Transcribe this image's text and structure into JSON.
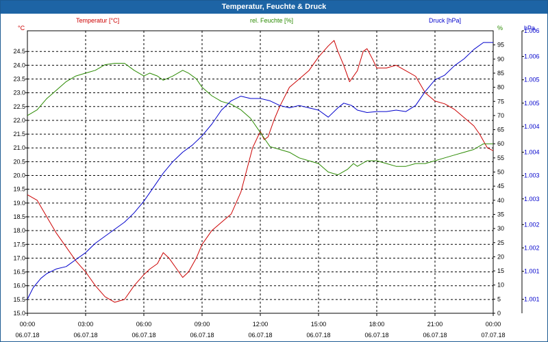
{
  "window": {
    "title": "Temperatur, Feuchte & Druck"
  },
  "colors": {
    "temperature": "#cc0000",
    "humidity": "#2a8a00",
    "pressure": "#0000cc",
    "grid": "#000000",
    "titlebar": "#1d64a5"
  },
  "chart_data": {
    "type": "line",
    "title": "Temperatur, Feuchte & Druck",
    "x_ticks": [
      {
        "time": "00:00",
        "date": "06.07.18",
        "hour": 0
      },
      {
        "time": "03:00",
        "date": "06.07.18",
        "hour": 3
      },
      {
        "time": "06:00",
        "date": "06.07.18",
        "hour": 6
      },
      {
        "time": "09:00",
        "date": "06.07.18",
        "hour": 9
      },
      {
        "time": "12:00",
        "date": "06.07.18",
        "hour": 12
      },
      {
        "time": "15:00",
        "date": "06.07.18",
        "hour": 15
      },
      {
        "time": "18:00",
        "date": "06.07.18",
        "hour": 18
      },
      {
        "time": "21:00",
        "date": "06.07.18",
        "hour": 21
      },
      {
        "time": "00:00",
        "date": "07.07.18",
        "hour": 24
      }
    ],
    "xlim": [
      0,
      24
    ],
    "axes": {
      "temperature": {
        "unit": "°C",
        "range": [
          15.0,
          25.25
        ],
        "ticks": [
          15.0,
          15.5,
          16.0,
          16.5,
          17.0,
          17.5,
          18.0,
          18.5,
          19.0,
          19.5,
          20.0,
          20.5,
          21.0,
          21.5,
          22.0,
          22.5,
          23.0,
          23.5,
          24.0,
          24.5
        ]
      },
      "humidity": {
        "unit": "%",
        "range": [
          0,
          100
        ],
        "ticks": [
          0,
          5,
          10,
          15,
          20,
          25,
          30,
          35,
          40,
          45,
          50,
          55,
          60,
          65,
          70,
          75,
          80,
          85,
          90,
          95
        ]
      },
      "pressure": {
        "unit": "hPa",
        "range": [
          1000.4,
          1006.45
        ],
        "ticks": [
          {
            "value": 1000.7,
            "label": "1.001"
          },
          {
            "value": 1001.3,
            "label": "1.001"
          },
          {
            "value": 1001.8,
            "label": "1.002"
          },
          {
            "value": 1002.3,
            "label": "1.002"
          },
          {
            "value": 1002.85,
            "label": "1.003"
          },
          {
            "value": 1003.35,
            "label": "1.003"
          },
          {
            "value": 1003.85,
            "label": "1.004"
          },
          {
            "value": 1004.4,
            "label": "1.004"
          },
          {
            "value": 1004.9,
            "label": "1.005"
          },
          {
            "value": 1005.4,
            "label": "1.005"
          },
          {
            "value": 1005.9,
            "label": "1.006"
          },
          {
            "value": 1006.45,
            "label": "1.006"
          }
        ]
      }
    },
    "series": [
      {
        "name": "Temperatur [°C]",
        "axis": "temperature",
        "key": "temperature",
        "points": [
          [
            0,
            19.3
          ],
          [
            0.5,
            19.1
          ],
          [
            1,
            18.5
          ],
          [
            1.5,
            17.9
          ],
          [
            2,
            17.4
          ],
          [
            2.5,
            16.9
          ],
          [
            3,
            16.5
          ],
          [
            3.5,
            16.0
          ],
          [
            4,
            15.6
          ],
          [
            4.5,
            15.4
          ],
          [
            5,
            15.5
          ],
          [
            5.5,
            16.0
          ],
          [
            6,
            16.4
          ],
          [
            6.3,
            16.6
          ],
          [
            6.7,
            16.8
          ],
          [
            7,
            17.2
          ],
          [
            7.3,
            17.0
          ],
          [
            7.7,
            16.6
          ],
          [
            8,
            16.3
          ],
          [
            8.3,
            16.5
          ],
          [
            8.7,
            17.0
          ],
          [
            9,
            17.5
          ],
          [
            9.5,
            18.0
          ],
          [
            10,
            18.3
          ],
          [
            10.5,
            18.6
          ],
          [
            11,
            19.4
          ],
          [
            11.3,
            20.2
          ],
          [
            11.6,
            21.0
          ],
          [
            12,
            21.6
          ],
          [
            12.2,
            21.3
          ],
          [
            12.4,
            21.4
          ],
          [
            12.7,
            22.0
          ],
          [
            13,
            22.5
          ],
          [
            13.5,
            23.2
          ],
          [
            14,
            23.5
          ],
          [
            14.5,
            23.8
          ],
          [
            15,
            24.3
          ],
          [
            15.5,
            24.7
          ],
          [
            15.8,
            24.9
          ],
          [
            16,
            24.5
          ],
          [
            16.3,
            24.0
          ],
          [
            16.6,
            23.4
          ],
          [
            17,
            23.8
          ],
          [
            17.3,
            24.5
          ],
          [
            17.5,
            24.6
          ],
          [
            17.8,
            24.2
          ],
          [
            18,
            23.9
          ],
          [
            18.5,
            23.9
          ],
          [
            19,
            24.0
          ],
          [
            19.5,
            23.8
          ],
          [
            20,
            23.6
          ],
          [
            20.5,
            23.0
          ],
          [
            21,
            22.7
          ],
          [
            21.5,
            22.6
          ],
          [
            22,
            22.4
          ],
          [
            22.5,
            22.1
          ],
          [
            23,
            21.8
          ],
          [
            23.3,
            21.5
          ],
          [
            23.7,
            21.0
          ],
          [
            24,
            20.9
          ]
        ]
      },
      {
        "name": "rel. Feuchte [%]",
        "axis": "humidity",
        "key": "humidity",
        "points": [
          [
            0,
            70
          ],
          [
            0.5,
            72
          ],
          [
            1,
            76
          ],
          [
            1.5,
            79
          ],
          [
            2,
            82
          ],
          [
            2.5,
            84
          ],
          [
            3,
            85
          ],
          [
            3.5,
            86
          ],
          [
            4,
            88
          ],
          [
            4.5,
            88.5
          ],
          [
            5,
            88.5
          ],
          [
            5.3,
            87
          ],
          [
            5.5,
            86
          ],
          [
            6,
            84
          ],
          [
            6.3,
            85
          ],
          [
            6.7,
            84
          ],
          [
            7,
            82.5
          ],
          [
            7.5,
            84
          ],
          [
            8,
            86
          ],
          [
            8.3,
            85
          ],
          [
            8.7,
            83
          ],
          [
            9,
            80
          ],
          [
            9.5,
            77
          ],
          [
            10,
            75
          ],
          [
            10.5,
            74
          ],
          [
            11,
            72
          ],
          [
            11.5,
            69
          ],
          [
            12,
            64
          ],
          [
            12.3,
            61
          ],
          [
            12.5,
            59
          ],
          [
            13,
            58
          ],
          [
            13.5,
            57
          ],
          [
            14,
            55
          ],
          [
            14.5,
            54
          ],
          [
            15,
            53
          ],
          [
            15.5,
            50
          ],
          [
            16,
            49
          ],
          [
            16.5,
            51
          ],
          [
            16.8,
            53
          ],
          [
            17,
            52
          ],
          [
            17.5,
            54
          ],
          [
            18,
            54
          ],
          [
            18.5,
            53
          ],
          [
            19,
            52
          ],
          [
            19.5,
            52
          ],
          [
            20,
            53
          ],
          [
            20.5,
            53
          ],
          [
            21,
            54
          ],
          [
            21.5,
            55
          ],
          [
            22,
            56
          ],
          [
            22.5,
            57
          ],
          [
            23,
            58
          ],
          [
            23.5,
            60
          ],
          [
            24,
            60
          ]
        ]
      },
      {
        "name": "Druck [hPa]",
        "axis": "pressure",
        "key": "pressure",
        "points": [
          [
            0,
            1000.7
          ],
          [
            0.3,
            1000.95
          ],
          [
            0.7,
            1001.15
          ],
          [
            1,
            1001.25
          ],
          [
            1.5,
            1001.35
          ],
          [
            2,
            1001.4
          ],
          [
            2.5,
            1001.55
          ],
          [
            3,
            1001.7
          ],
          [
            3.5,
            1001.9
          ],
          [
            4,
            1002.05
          ],
          [
            4.5,
            1002.2
          ],
          [
            5,
            1002.35
          ],
          [
            5.5,
            1002.55
          ],
          [
            6,
            1002.8
          ],
          [
            6.5,
            1003.1
          ],
          [
            7,
            1003.4
          ],
          [
            7.5,
            1003.65
          ],
          [
            8,
            1003.85
          ],
          [
            8.5,
            1004.0
          ],
          [
            9,
            1004.2
          ],
          [
            9.5,
            1004.45
          ],
          [
            10,
            1004.75
          ],
          [
            10.5,
            1004.95
          ],
          [
            11,
            1005.05
          ],
          [
            11.5,
            1005.0
          ],
          [
            12,
            1005.0
          ],
          [
            12.5,
            1004.95
          ],
          [
            13,
            1004.85
          ],
          [
            13.5,
            1004.8
          ],
          [
            14,
            1004.85
          ],
          [
            14.5,
            1004.8
          ],
          [
            15,
            1004.75
          ],
          [
            15.5,
            1004.6
          ],
          [
            16,
            1004.8
          ],
          [
            16.3,
            1004.9
          ],
          [
            16.7,
            1004.85
          ],
          [
            17,
            1004.75
          ],
          [
            17.5,
            1004.7
          ],
          [
            18,
            1004.72
          ],
          [
            18.5,
            1004.72
          ],
          [
            19,
            1004.75
          ],
          [
            19.5,
            1004.72
          ],
          [
            20,
            1004.85
          ],
          [
            20.5,
            1005.15
          ],
          [
            21,
            1005.4
          ],
          [
            21.5,
            1005.5
          ],
          [
            22,
            1005.7
          ],
          [
            22.5,
            1005.85
          ],
          [
            23,
            1006.05
          ],
          [
            23.5,
            1006.2
          ],
          [
            24,
            1006.2
          ]
        ]
      }
    ]
  }
}
